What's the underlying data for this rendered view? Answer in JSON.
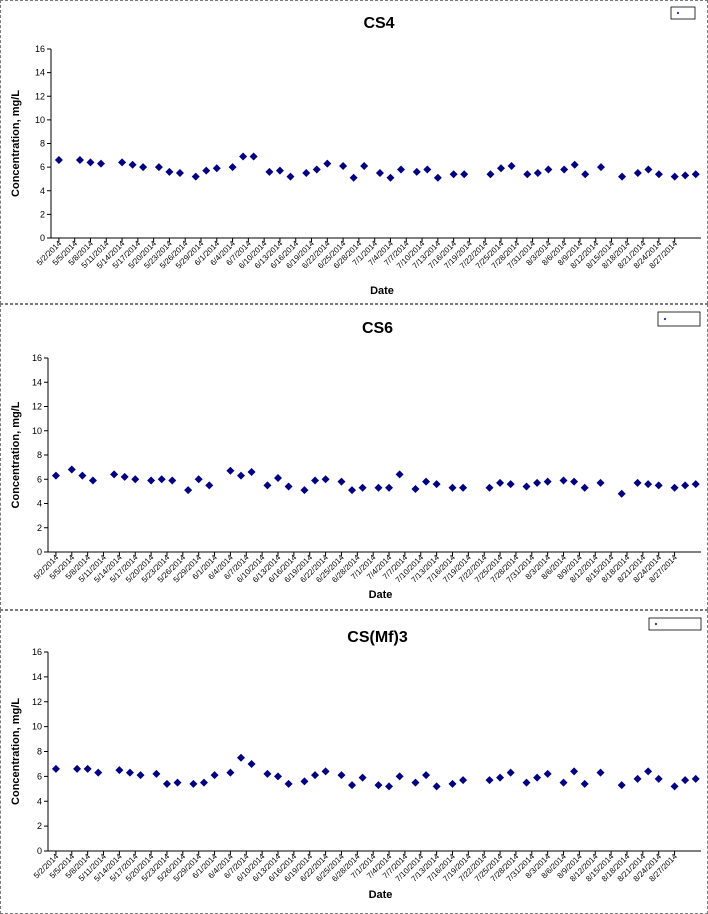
{
  "chart_data": [
    {
      "type": "scatter",
      "title": "CS4",
      "xlabel": "Date",
      "ylabel": "Concentration, mg/L",
      "ylim": [
        0,
        16
      ],
      "yticks": [
        0,
        2,
        4,
        6,
        8,
        10,
        12,
        14,
        16
      ],
      "legend": "top-right",
      "marker_color": "#000080",
      "x_tick_labels": [
        "5/2/2014",
        "5/5/2014",
        "5/8/2014",
        "5/11/2014",
        "5/14/2014",
        "5/17/2014",
        "5/20/2014",
        "5/23/2014",
        "5/26/2014",
        "5/29/2014",
        "6/1/2014",
        "6/4/2014",
        "6/7/2014",
        "6/10/2014",
        "6/13/2014",
        "6/16/2014",
        "6/19/2014",
        "6/22/2014",
        "6/25/2014",
        "6/28/2014",
        "7/1/2014",
        "7/4/2014",
        "7/7/2014",
        "7/10/2014",
        "7/13/2014",
        "7/16/2014",
        "7/19/2014",
        "7/22/2014",
        "7/25/2014",
        "7/28/2014",
        "7/31/2014",
        "8/3/2014",
        "8/6/2014",
        "8/9/2014",
        "8/12/2014",
        "8/15/2014",
        "8/18/2014",
        "8/21/2014",
        "8/24/2014",
        "8/27/2014"
      ],
      "points": [
        {
          "x": "2014-05-02",
          "y": 6.6
        },
        {
          "x": "2014-05-06",
          "y": 6.6
        },
        {
          "x": "2014-05-08",
          "y": 6.4
        },
        {
          "x": "2014-05-10",
          "y": 6.3
        },
        {
          "x": "2014-05-14",
          "y": 6.4
        },
        {
          "x": "2014-05-16",
          "y": 6.2
        },
        {
          "x": "2014-05-18",
          "y": 6.0
        },
        {
          "x": "2014-05-21",
          "y": 6.0
        },
        {
          "x": "2014-05-23",
          "y": 5.6
        },
        {
          "x": "2014-05-25",
          "y": 5.5
        },
        {
          "x": "2014-05-28",
          "y": 5.2
        },
        {
          "x": "2014-05-30",
          "y": 5.7
        },
        {
          "x": "2014-06-01",
          "y": 5.9
        },
        {
          "x": "2014-06-04",
          "y": 6.0
        },
        {
          "x": "2014-06-06",
          "y": 6.9
        },
        {
          "x": "2014-06-08",
          "y": 6.9
        },
        {
          "x": "2014-06-11",
          "y": 5.6
        },
        {
          "x": "2014-06-13",
          "y": 5.7
        },
        {
          "x": "2014-06-15",
          "y": 5.2
        },
        {
          "x": "2014-06-18",
          "y": 5.5
        },
        {
          "x": "2014-06-20",
          "y": 5.8
        },
        {
          "x": "2014-06-22",
          "y": 6.3
        },
        {
          "x": "2014-06-25",
          "y": 6.1
        },
        {
          "x": "2014-06-27",
          "y": 5.1
        },
        {
          "x": "2014-06-29",
          "y": 6.1
        },
        {
          "x": "2014-07-02",
          "y": 5.5
        },
        {
          "x": "2014-07-04",
          "y": 5.1
        },
        {
          "x": "2014-07-06",
          "y": 5.8
        },
        {
          "x": "2014-07-09",
          "y": 5.6
        },
        {
          "x": "2014-07-11",
          "y": 5.8
        },
        {
          "x": "2014-07-13",
          "y": 5.1
        },
        {
          "x": "2014-07-16",
          "y": 5.4
        },
        {
          "x": "2014-07-18",
          "y": 5.4
        },
        {
          "x": "2014-07-23",
          "y": 5.4
        },
        {
          "x": "2014-07-25",
          "y": 5.9
        },
        {
          "x": "2014-07-27",
          "y": 6.1
        },
        {
          "x": "2014-07-30",
          "y": 5.4
        },
        {
          "x": "2014-08-01",
          "y": 5.5
        },
        {
          "x": "2014-08-03",
          "y": 5.8
        },
        {
          "x": "2014-08-06",
          "y": 5.8
        },
        {
          "x": "2014-08-08",
          "y": 6.2
        },
        {
          "x": "2014-08-10",
          "y": 5.4
        },
        {
          "x": "2014-08-13",
          "y": 6.0
        },
        {
          "x": "2014-08-17",
          "y": 5.2
        },
        {
          "x": "2014-08-20",
          "y": 5.5
        },
        {
          "x": "2014-08-22",
          "y": 5.8
        },
        {
          "x": "2014-08-24",
          "y": 5.4
        },
        {
          "x": "2014-08-27",
          "y": 5.2
        },
        {
          "x": "2014-08-29",
          "y": 5.3
        },
        {
          "x": "2014-08-31",
          "y": 5.4
        }
      ]
    },
    {
      "type": "scatter",
      "title": "CS6",
      "xlabel": "Date",
      "ylabel": "Concentration, mg/L",
      "ylim": [
        0,
        16
      ],
      "yticks": [
        0,
        2,
        4,
        6,
        8,
        10,
        12,
        14,
        16
      ],
      "legend": "top-right",
      "marker_color": "#000080",
      "x_tick_labels": [
        "5/2/2014",
        "5/5/2014",
        "5/8/2014",
        "5/11/2014",
        "5/14/2014",
        "5/17/2014",
        "5/20/2014",
        "5/23/2014",
        "5/26/2014",
        "5/29/2014",
        "6/1/2014",
        "6/4/2014",
        "6/7/2014",
        "6/10/2014",
        "6/13/2014",
        "6/16/2014",
        "6/19/2014",
        "6/22/2014",
        "6/25/2014",
        "6/28/2014",
        "7/1/2014",
        "7/4/2014",
        "7/7/2014",
        "7/10/2014",
        "7/13/2014",
        "7/16/2014",
        "7/19/2014",
        "7/22/2014",
        "7/25/2014",
        "7/28/2014",
        "7/31/2014",
        "8/3/2014",
        "8/6/2014",
        "8/9/2014",
        "8/12/2014",
        "8/15/2014",
        "8/18/2014",
        "8/21/2014",
        "8/24/2014",
        "8/27/2014"
      ],
      "points": [
        {
          "x": "2014-05-02",
          "y": 6.3
        },
        {
          "x": "2014-05-05",
          "y": 6.8
        },
        {
          "x": "2014-05-07",
          "y": 6.3
        },
        {
          "x": "2014-05-09",
          "y": 5.9
        },
        {
          "x": "2014-05-13",
          "y": 6.4
        },
        {
          "x": "2014-05-15",
          "y": 6.2
        },
        {
          "x": "2014-05-17",
          "y": 6.0
        },
        {
          "x": "2014-05-20",
          "y": 5.9
        },
        {
          "x": "2014-05-22",
          "y": 6.0
        },
        {
          "x": "2014-05-24",
          "y": 5.9
        },
        {
          "x": "2014-05-27",
          "y": 5.1
        },
        {
          "x": "2014-05-29",
          "y": 6.0
        },
        {
          "x": "2014-05-31",
          "y": 5.5
        },
        {
          "x": "2014-06-04",
          "y": 6.7
        },
        {
          "x": "2014-06-06",
          "y": 6.3
        },
        {
          "x": "2014-06-08",
          "y": 6.6
        },
        {
          "x": "2014-06-11",
          "y": 5.5
        },
        {
          "x": "2014-06-13",
          "y": 6.1
        },
        {
          "x": "2014-06-15",
          "y": 5.4
        },
        {
          "x": "2014-06-18",
          "y": 5.1
        },
        {
          "x": "2014-06-20",
          "y": 5.9
        },
        {
          "x": "2014-06-22",
          "y": 6.0
        },
        {
          "x": "2014-06-25",
          "y": 5.8
        },
        {
          "x": "2014-06-27",
          "y": 5.1
        },
        {
          "x": "2014-06-29",
          "y": 5.3
        },
        {
          "x": "2014-07-02",
          "y": 5.3
        },
        {
          "x": "2014-07-04",
          "y": 5.3
        },
        {
          "x": "2014-07-06",
          "y": 6.4
        },
        {
          "x": "2014-07-09",
          "y": 5.2
        },
        {
          "x": "2014-07-11",
          "y": 5.8
        },
        {
          "x": "2014-07-13",
          "y": 5.6
        },
        {
          "x": "2014-07-16",
          "y": 5.3
        },
        {
          "x": "2014-07-18",
          "y": 5.3
        },
        {
          "x": "2014-07-23",
          "y": 5.3
        },
        {
          "x": "2014-07-25",
          "y": 5.7
        },
        {
          "x": "2014-07-27",
          "y": 5.6
        },
        {
          "x": "2014-07-30",
          "y": 5.4
        },
        {
          "x": "2014-08-01",
          "y": 5.7
        },
        {
          "x": "2014-08-03",
          "y": 5.8
        },
        {
          "x": "2014-08-06",
          "y": 5.9
        },
        {
          "x": "2014-08-08",
          "y": 5.8
        },
        {
          "x": "2014-08-10",
          "y": 5.3
        },
        {
          "x": "2014-08-13",
          "y": 5.7
        },
        {
          "x": "2014-08-17",
          "y": 4.8
        },
        {
          "x": "2014-08-20",
          "y": 5.7
        },
        {
          "x": "2014-08-22",
          "y": 5.6
        },
        {
          "x": "2014-08-24",
          "y": 5.5
        },
        {
          "x": "2014-08-27",
          "y": 5.3
        },
        {
          "x": "2014-08-29",
          "y": 5.5
        },
        {
          "x": "2014-08-31",
          "y": 5.6
        }
      ]
    },
    {
      "type": "scatter",
      "title": "CS(Mf)3",
      "xlabel": "Date",
      "ylabel": "Concentration, mg/L",
      "ylim": [
        0,
        16
      ],
      "yticks": [
        0,
        2,
        4,
        6,
        8,
        10,
        12,
        14,
        16
      ],
      "legend": "top-right",
      "marker_color": "#000080",
      "x_tick_labels": [
        "5/2/2014",
        "5/5/2014",
        "5/8/2014",
        "5/11/2014",
        "5/14/2014",
        "5/17/2014",
        "5/20/2014",
        "5/23/2014",
        "5/26/2014",
        "5/29/2014",
        "6/1/2014",
        "6/4/2014",
        "6/7/2014",
        "6/10/2014",
        "6/13/2014",
        "6/16/2014",
        "6/19/2014",
        "6/22/2014",
        "6/25/2014",
        "6/28/2014",
        "7/1/2014",
        "7/4/2014",
        "7/7/2014",
        "7/10/2014",
        "7/13/2014",
        "7/16/2014",
        "7/19/2014",
        "7/22/2014",
        "7/25/2014",
        "7/28/2014",
        "7/31/2014",
        "8/3/2014",
        "8/6/2014",
        "8/9/2014",
        "8/12/2014",
        "8/15/2014",
        "8/18/2014",
        "8/21/2014",
        "8/24/2014",
        "8/27/2014"
      ],
      "points": [
        {
          "x": "2014-05-02",
          "y": 6.6
        },
        {
          "x": "2014-05-06",
          "y": 6.6
        },
        {
          "x": "2014-05-08",
          "y": 6.6
        },
        {
          "x": "2014-05-10",
          "y": 6.3
        },
        {
          "x": "2014-05-14",
          "y": 6.5
        },
        {
          "x": "2014-05-16",
          "y": 6.3
        },
        {
          "x": "2014-05-18",
          "y": 6.1
        },
        {
          "x": "2014-05-21",
          "y": 6.2
        },
        {
          "x": "2014-05-23",
          "y": 5.4
        },
        {
          "x": "2014-05-25",
          "y": 5.5
        },
        {
          "x": "2014-05-28",
          "y": 5.4
        },
        {
          "x": "2014-05-30",
          "y": 5.5
        },
        {
          "x": "2014-06-01",
          "y": 6.1
        },
        {
          "x": "2014-06-04",
          "y": 6.3
        },
        {
          "x": "2014-06-06",
          "y": 7.5
        },
        {
          "x": "2014-06-08",
          "y": 7.0
        },
        {
          "x": "2014-06-11",
          "y": 6.2
        },
        {
          "x": "2014-06-13",
          "y": 6.0
        },
        {
          "x": "2014-06-15",
          "y": 5.4
        },
        {
          "x": "2014-06-18",
          "y": 5.6
        },
        {
          "x": "2014-06-20",
          "y": 6.1
        },
        {
          "x": "2014-06-22",
          "y": 6.4
        },
        {
          "x": "2014-06-25",
          "y": 6.1
        },
        {
          "x": "2014-06-27",
          "y": 5.3
        },
        {
          "x": "2014-06-29",
          "y": 5.9
        },
        {
          "x": "2014-07-02",
          "y": 5.3
        },
        {
          "x": "2014-07-04",
          "y": 5.2
        },
        {
          "x": "2014-07-06",
          "y": 6.0
        },
        {
          "x": "2014-07-09",
          "y": 5.5
        },
        {
          "x": "2014-07-11",
          "y": 6.1
        },
        {
          "x": "2014-07-13",
          "y": 5.2
        },
        {
          "x": "2014-07-16",
          "y": 5.4
        },
        {
          "x": "2014-07-18",
          "y": 5.7
        },
        {
          "x": "2014-07-23",
          "y": 5.7
        },
        {
          "x": "2014-07-25",
          "y": 5.9
        },
        {
          "x": "2014-07-27",
          "y": 6.3
        },
        {
          "x": "2014-07-30",
          "y": 5.5
        },
        {
          "x": "2014-08-01",
          "y": 5.9
        },
        {
          "x": "2014-08-03",
          "y": 6.2
        },
        {
          "x": "2014-08-06",
          "y": 5.5
        },
        {
          "x": "2014-08-08",
          "y": 6.4
        },
        {
          "x": "2014-08-10",
          "y": 5.4
        },
        {
          "x": "2014-08-13",
          "y": 6.3
        },
        {
          "x": "2014-08-17",
          "y": 5.3
        },
        {
          "x": "2014-08-20",
          "y": 5.8
        },
        {
          "x": "2014-08-22",
          "y": 6.4
        },
        {
          "x": "2014-08-24",
          "y": 5.8
        },
        {
          "x": "2014-08-27",
          "y": 5.2
        },
        {
          "x": "2014-08-29",
          "y": 5.7
        },
        {
          "x": "2014-08-31",
          "y": 5.8
        }
      ]
    }
  ]
}
